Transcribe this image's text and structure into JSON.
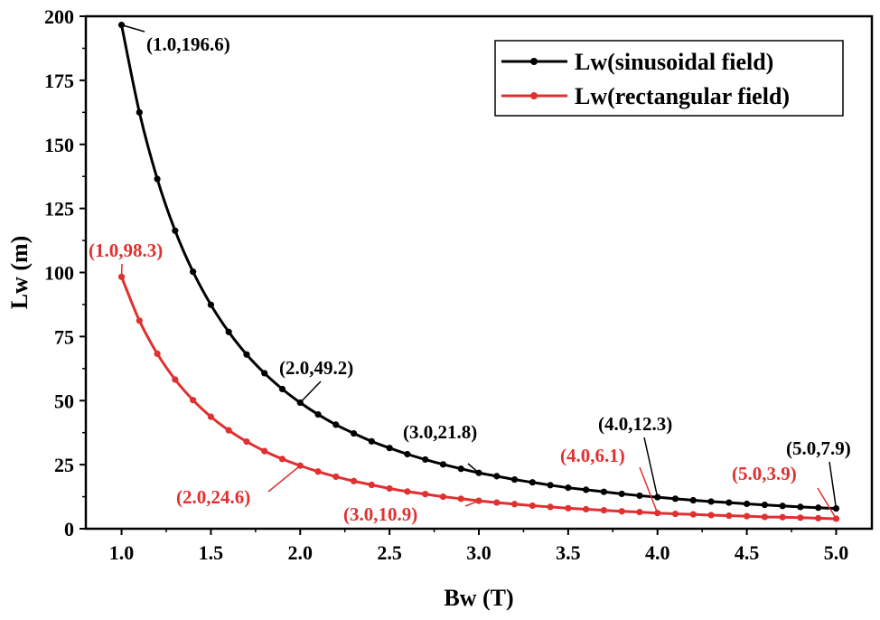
{
  "chart_data": {
    "type": "line",
    "xlabel": "Bw (T)",
    "ylabel": "Lw (m)",
    "xlim": [
      0.8,
      5.2
    ],
    "ylim": [
      0,
      200
    ],
    "xticks": [
      1.0,
      1.5,
      2.0,
      2.5,
      3.0,
      3.5,
      4.0,
      4.5,
      5.0
    ],
    "xtick_labels": [
      "1.0",
      "1.5",
      "2.0",
      "2.5",
      "3.0",
      "3.5",
      "4.0",
      "4.5",
      "5.0"
    ],
    "yticks": [
      0,
      25,
      50,
      75,
      100,
      125,
      150,
      175,
      200
    ],
    "ytick_labels": [
      "0",
      "25",
      "50",
      "75",
      "100",
      "125",
      "150",
      "175",
      "200"
    ],
    "legend_position": "top-right",
    "series": [
      {
        "name": "Lw(sinusoidal field)",
        "color": "#000000",
        "x": [
          1.0,
          1.1,
          1.2,
          1.3,
          1.4,
          1.5,
          1.6,
          1.7,
          1.8,
          1.9,
          2.0,
          2.1,
          2.2,
          2.3,
          2.4,
          2.5,
          2.6,
          2.7,
          2.8,
          2.9,
          3.0,
          3.1,
          3.2,
          3.3,
          3.4,
          3.5,
          3.6,
          3.7,
          3.8,
          3.9,
          4.0,
          4.1,
          4.2,
          4.3,
          4.4,
          4.5,
          4.6,
          4.7,
          4.8,
          4.9,
          5.0
        ],
        "y": [
          196.6,
          162.5,
          136.5,
          116.3,
          100.3,
          87.4,
          76.8,
          68.0,
          60.7,
          54.5,
          49.2,
          44.6,
          40.6,
          37.2,
          34.1,
          31.5,
          29.1,
          27.0,
          25.1,
          23.4,
          21.8,
          20.5,
          19.2,
          18.1,
          17.0,
          16.0,
          15.2,
          14.4,
          13.6,
          12.9,
          12.3,
          11.7,
          11.1,
          10.6,
          10.2,
          9.7,
          9.3,
          8.9,
          8.5,
          8.2,
          7.9
        ]
      },
      {
        "name": "Lw(rectangular field)",
        "color": "#e03030",
        "x": [
          1.0,
          1.1,
          1.2,
          1.3,
          1.4,
          1.5,
          1.6,
          1.7,
          1.8,
          1.9,
          2.0,
          2.1,
          2.2,
          2.3,
          2.4,
          2.5,
          2.6,
          2.7,
          2.8,
          2.9,
          3.0,
          3.1,
          3.2,
          3.3,
          3.4,
          3.5,
          3.6,
          3.7,
          3.8,
          3.9,
          4.0,
          4.1,
          4.2,
          4.3,
          4.4,
          4.5,
          4.6,
          4.7,
          4.8,
          4.9,
          5.0
        ],
        "y": [
          98.3,
          81.2,
          68.3,
          58.2,
          50.2,
          43.7,
          38.4,
          34.0,
          30.3,
          27.2,
          24.6,
          22.3,
          20.3,
          18.6,
          17.1,
          15.7,
          14.5,
          13.5,
          12.5,
          11.7,
          10.9,
          10.2,
          9.6,
          9.0,
          8.5,
          8.0,
          7.6,
          7.2,
          6.8,
          6.5,
          6.1,
          5.8,
          5.6,
          5.3,
          5.1,
          4.9,
          4.6,
          4.5,
          4.3,
          4.1,
          3.9
        ]
      }
    ],
    "annotations": [
      {
        "text": "(1.0,196.6)",
        "x": 1.0,
        "y": 196.6,
        "series": 0
      },
      {
        "text": "(2.0,49.2)",
        "x": 2.0,
        "y": 49.2,
        "series": 0
      },
      {
        "text": "(3.0,21.8)",
        "x": 3.0,
        "y": 21.8,
        "series": 0
      },
      {
        "text": "(4.0,12.3)",
        "x": 4.0,
        "y": 12.3,
        "series": 0
      },
      {
        "text": "(5.0,7.9)",
        "x": 5.0,
        "y": 7.9,
        "series": 0
      },
      {
        "text": "(1.0,98.3)",
        "x": 1.0,
        "y": 98.3,
        "series": 1
      },
      {
        "text": "(2.0,24.6)",
        "x": 2.0,
        "y": 24.6,
        "series": 1
      },
      {
        "text": "(3.0,10.9)",
        "x": 3.0,
        "y": 10.9,
        "series": 1
      },
      {
        "text": "(4.0,6.1)",
        "x": 4.0,
        "y": 6.1,
        "series": 1
      },
      {
        "text": "(5.0,3.9)",
        "x": 5.0,
        "y": 3.9,
        "series": 1
      }
    ]
  }
}
